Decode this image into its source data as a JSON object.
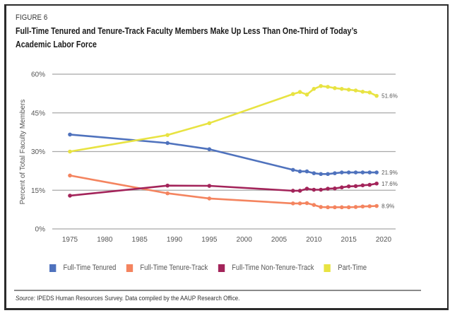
{
  "figure_label": "FIGURE 6",
  "title_line1": "Full-Time Tenured and Tenure-Track Faculty Members Make Up Less Than One-Third of Today’s",
  "title_line2": "Academic Labor Force",
  "source_prefix": "Source:",
  "source_text": " IPEDS Human Resources Survey. Data compiled by the AAUP Research Office.",
  "chart_data": {
    "type": "line",
    "title": "Full-Time Tenured and Tenure-Track Faculty Members Make Up Less Than One-Third of Today’s Academic Labor Force",
    "xlabel": "",
    "ylabel": "Percent of Total Faculty Members",
    "xlim": [
      1975,
      2020
    ],
    "ylim": [
      0,
      60
    ],
    "x_ticks": [
      "1975",
      "1980",
      "1985",
      "1990",
      "1995",
      "2000",
      "2005",
      "2010",
      "2015",
      "2020"
    ],
    "y_ticks": [
      "0%",
      "15%",
      "30%",
      "45%",
      "60%"
    ],
    "y_tick_values": [
      0,
      15,
      30,
      45,
      60
    ],
    "x_tick_values": [
      1975,
      1980,
      1985,
      1990,
      1995,
      2000,
      2005,
      2010,
      2015,
      2020
    ],
    "grid": "horizontal",
    "legend_position": "bottom",
    "x": [
      1975,
      1989,
      1995,
      2007,
      2008,
      2009,
      2010,
      2011,
      2012,
      2013,
      2014,
      2015,
      2016,
      2017,
      2018,
      2019
    ],
    "series": [
      {
        "name": "Full-Time Tenured",
        "color": "#4f72bd",
        "values": [
          36.6,
          33.3,
          30.9,
          22.9,
          22.3,
          22.3,
          21.6,
          21.3,
          21.3,
          21.6,
          21.9,
          21.9,
          21.9,
          21.9,
          21.9,
          21.9
        ],
        "end_label": "21.9%"
      },
      {
        "name": "Full-Time Tenure-Track",
        "color": "#f4845f",
        "values": [
          20.7,
          13.8,
          11.8,
          9.9,
          9.9,
          10.0,
          9.3,
          8.5,
          8.4,
          8.4,
          8.4,
          8.4,
          8.5,
          8.7,
          8.8,
          8.9
        ],
        "end_label": "8.9%"
      },
      {
        "name": "Full-Time Non-Tenure-Track",
        "color": "#a3245a",
        "values": [
          12.9,
          16.8,
          16.7,
          14.8,
          14.8,
          15.6,
          15.2,
          15.2,
          15.6,
          15.7,
          16.1,
          16.5,
          16.6,
          16.9,
          17.1,
          17.6
        ],
        "end_label": "17.6%"
      },
      {
        "name": "Part-Time",
        "color": "#e8e342",
        "values": [
          30.0,
          36.4,
          41.0,
          52.3,
          53.1,
          52.1,
          54.3,
          55.4,
          55.1,
          54.6,
          54.3,
          54.0,
          53.7,
          53.2,
          52.9,
          51.6
        ],
        "end_label": "51.6%"
      }
    ]
  }
}
